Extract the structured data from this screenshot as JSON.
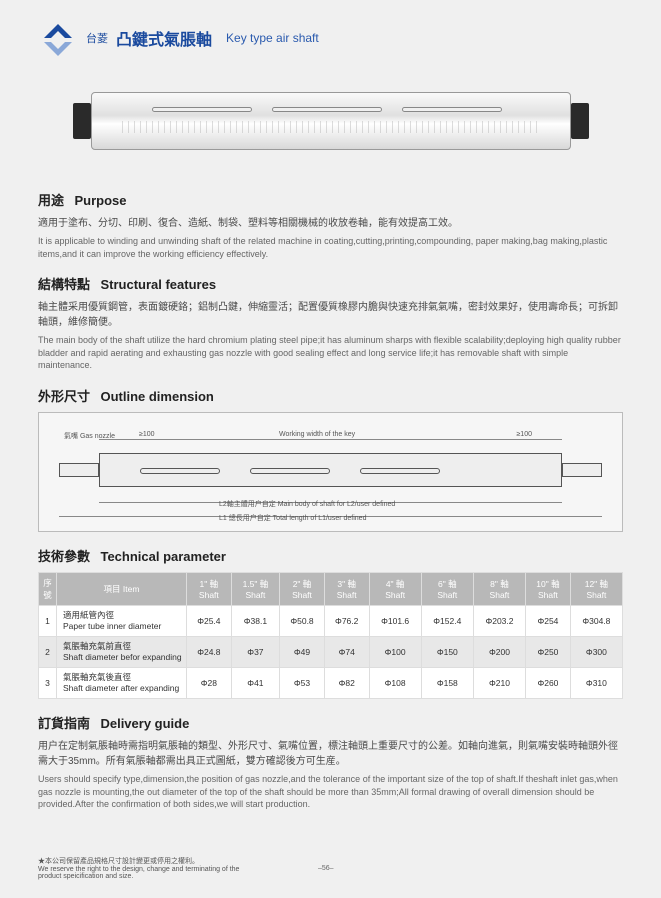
{
  "header": {
    "brand": "台菱",
    "title_cn": "凸鍵式氣脹軸",
    "title_en": "Key type air shaft",
    "logo_color": "#1a4a9e"
  },
  "purpose": {
    "title_cn": "用途",
    "title_en": "Purpose",
    "body_cn": "適用于塗布、分切、印刷、復合、造紙、制袋、塑料等相關機械的收放卷軸，能有效提高工效。",
    "body_en": "It is applicable to winding and unwinding shaft of the related machine in coating,cutting,printing,compounding, paper making,bag making,plastic items,and it can improve the working efficiency effectively."
  },
  "features": {
    "title_cn": "結構特點",
    "title_en": "Structural features",
    "body_cn": "軸主體采用優質鋼管，表面鍍硬鉻；鋁制凸鍵，伸縮靈活；配置優質橡膠内膽與快速充排氣氣嘴，密封效果好，使用壽命長；可拆卸軸頭，維修簡便。",
    "body_en": "The main body of the shaft utilize the hard chromium plating steel pipe;it has aluminum sharps with flexible scalability;deploying high quality rubber bladder and rapid aerating and exhausting gas nozzle with good sealing effect and long service life;it has removable shaft with simple maintenance."
  },
  "outline": {
    "title_cn": "外形尺寸",
    "title_en": "Outline dimension",
    "labels": {
      "nozzle": "氣嘴 Gas nozzle",
      "ge100": "≥100",
      "working": "Working width of the key",
      "l2": "L2軸主體用户自定 Main body of shaft for L2/user defined",
      "l1": "L1 總長用户自定  Total length of L1/user defined"
    }
  },
  "tech": {
    "title_cn": "技術參數",
    "title_en": "Technical parameter",
    "columns": [
      "序號",
      "項目 Item",
      "1\" 軸 Shaft",
      "1.5\" 軸 Shaft",
      "2\" 軸 Shaft",
      "3\" 軸 Shaft",
      "4\" 軸 Shaft",
      "6\" 軸 Shaft",
      "8\" 軸 Shaft",
      "10\" 軸 Shaft",
      "12\" 軸 Shaft"
    ],
    "rows": [
      {
        "n": "1",
        "item_cn": "適用紙管內徑",
        "item_en": "Paper tube inner diameter",
        "v": [
          "Φ25.4",
          "Φ38.1",
          "Φ50.8",
          "Φ76.2",
          "Φ101.6",
          "Φ152.4",
          "Φ203.2",
          "Φ254",
          "Φ304.8"
        ]
      },
      {
        "n": "2",
        "item_cn": "氣脹軸充氣前直徑",
        "item_en": "Shaft diameter befor expanding",
        "v": [
          "Φ24.8",
          "Φ37",
          "Φ49",
          "Φ74",
          "Φ100",
          "Φ150",
          "Φ200",
          "Φ250",
          "Φ300"
        ]
      },
      {
        "n": "3",
        "item_cn": "氣脹軸充氣後直徑",
        "item_en": "Shaft diameter after expanding",
        "v": [
          "Φ28",
          "Φ41",
          "Φ53",
          "Φ82",
          "Φ108",
          "Φ158",
          "Φ210",
          "Φ260",
          "Φ310"
        ]
      }
    ]
  },
  "delivery": {
    "title_cn": "訂貨指南",
    "title_en": "Delivery guide",
    "body_cn": "用户在定制氣脹軸時需指明氣脹軸的類型、外形尺寸、氣嘴位置，標注軸頭上重要尺寸的公差。如軸向進氣，則氣嘴安裝時軸頭外徑需大于35mm。所有氣脹軸都需出具正式圖紙，雙方確認後方可生産。",
    "body_en": "Users should specify type,dimension,the position of gas nozzle,and the tolerance of the important size of the top of shaft.If theshaft inlet gas,when gas nozzle is mounting,the out diameter of the top of the shaft should be more than 35mm;All formal drawing of overall dimension should be provided.After the confirmation of both sides,we will start production."
  },
  "footer": {
    "cn": "★本公司保留產品規格尺寸設計變更或停用之權利。",
    "en": "We reserve the right to the design, change and terminating of the product speicification and size.",
    "page": "–56–"
  }
}
